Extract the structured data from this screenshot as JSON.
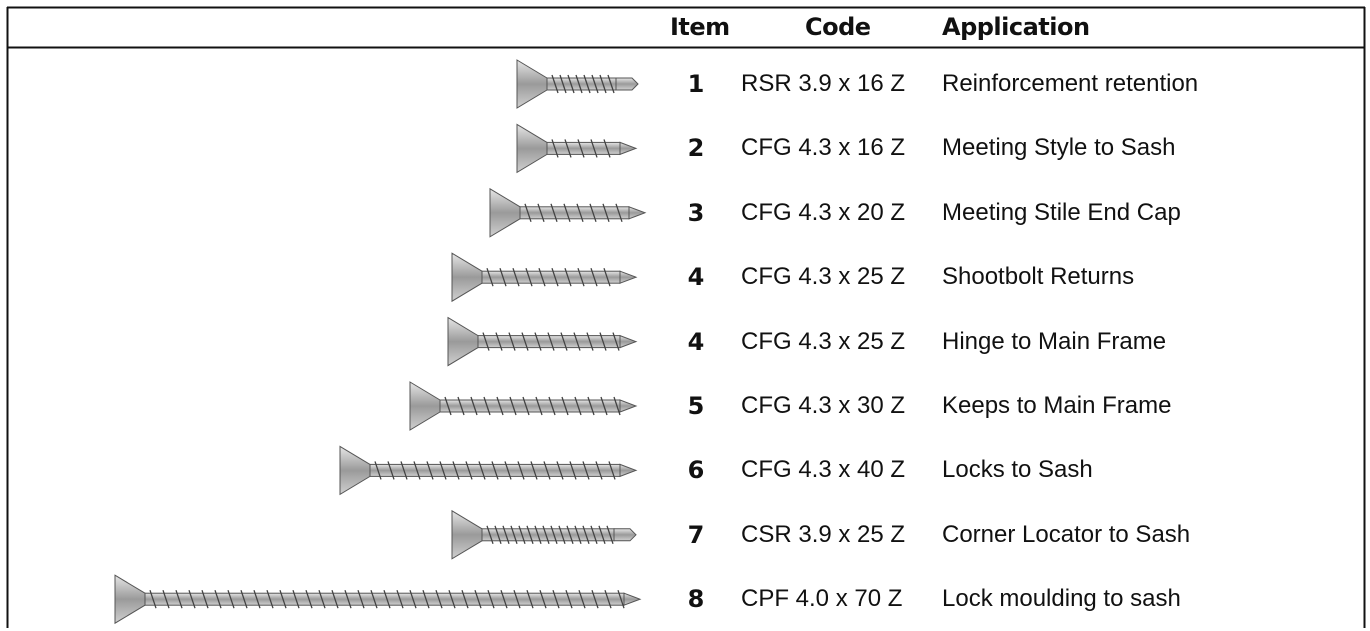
{
  "table": {
    "header": {
      "item": "Item",
      "code": "Code",
      "application": "Application"
    },
    "rows": [
      {
        "item": "1",
        "code": "RSR 3.9 x 16 Z",
        "application": "Reinforcement retention"
      },
      {
        "item": "2",
        "code": "CFG 4.3 x 16 Z",
        "application": "Meeting Style to Sash"
      },
      {
        "item": "3",
        "code": "CFG 4.3 x 20 Z",
        "application": "Meeting Stile End Cap"
      },
      {
        "item": "4",
        "code": "CFG 4.3 x 25 Z",
        "application": "Shootbolt Returns"
      },
      {
        "item": "4",
        "code": "CFG 4.3 x 25 Z",
        "application": "Hinge to Main Frame"
      },
      {
        "item": "5",
        "code": "CFG 4.3 x 30 Z",
        "application": "Keeps to Main Frame"
      },
      {
        "item": "6",
        "code": "CFG 4.3 x 40 Z",
        "application": "Locks to Sash"
      },
      {
        "item": "7",
        "code": "CSR 3.9 x 25 Z",
        "application": "Corner Locator to Sash"
      },
      {
        "item": "8",
        "code": "CPF 4.0 x 70 Z",
        "application": "Lock moulding to sash"
      }
    ]
  }
}
